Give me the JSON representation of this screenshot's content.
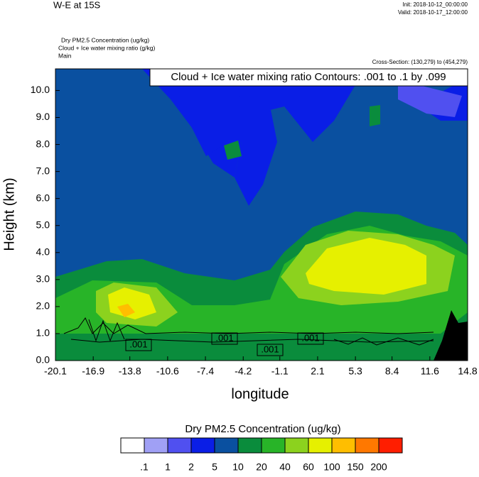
{
  "chart_data": {
    "type": "contour",
    "title": "W-E at 15S",
    "init": "Init: 2018-10-12_00:00:00",
    "valid": "Valid: 2018-10-17_12:00:00",
    "fields": [
      "Dry PM2.5 Concentration   (ug/kg)",
      "Cloud + Ice water mixing ratio   (g/kg)",
      "Main"
    ],
    "cross_section": "Cross-Section: (130,279) to (454,279)",
    "contour_title": "Cloud + Ice water mixing ratio Contours: .001 to .1 by .099",
    "contour_labels": [
      ".001",
      ".001",
      ".001",
      ".001"
    ],
    "xlabel": "longitude",
    "ylabel": "Height (km)",
    "xlim": [
      -20.1,
      14.8
    ],
    "xticks": [
      -20.1,
      -16.9,
      -13.8,
      -10.6,
      -7.4,
      -4.2,
      -1.1,
      2.1,
      5.3,
      8.4,
      11.6,
      14.8
    ],
    "ylim": [
      0,
      10.8
    ],
    "yticks": [
      {
        "value": 0,
        "label": "0.0"
      },
      {
        "value": 1,
        "label": "1.0"
      },
      {
        "value": 2,
        "label": "2.0"
      },
      {
        "value": 3,
        "label": "3.0"
      },
      {
        "value": 4,
        "label": "4.0"
      },
      {
        "value": 5,
        "label": "5.0"
      },
      {
        "value": 6,
        "label": "6.0"
      },
      {
        "value": 7,
        "label": "7.0"
      },
      {
        "value": 8,
        "label": "8.0"
      },
      {
        "value": 9,
        "label": "9.0"
      },
      {
        "value": 10,
        "label": "10.0"
      }
    ],
    "colorbar": {
      "title": "Dry PM2.5 Concentration  (ug/kg)",
      "colors": [
        "#ffffff",
        "#a0a0f5",
        "#5050f0",
        "#0a1ee6",
        "#0a50a0",
        "#0a8c3c",
        "#28b428",
        "#8cd21e",
        "#e6f000",
        "#ffbe00",
        "#ff7800",
        "#ff1e00"
      ],
      "levels": [
        {
          "value": 0.1,
          "label": ".1"
        },
        1,
        2,
        5,
        10,
        20,
        40,
        60,
        100,
        150,
        200
      ]
    }
  }
}
